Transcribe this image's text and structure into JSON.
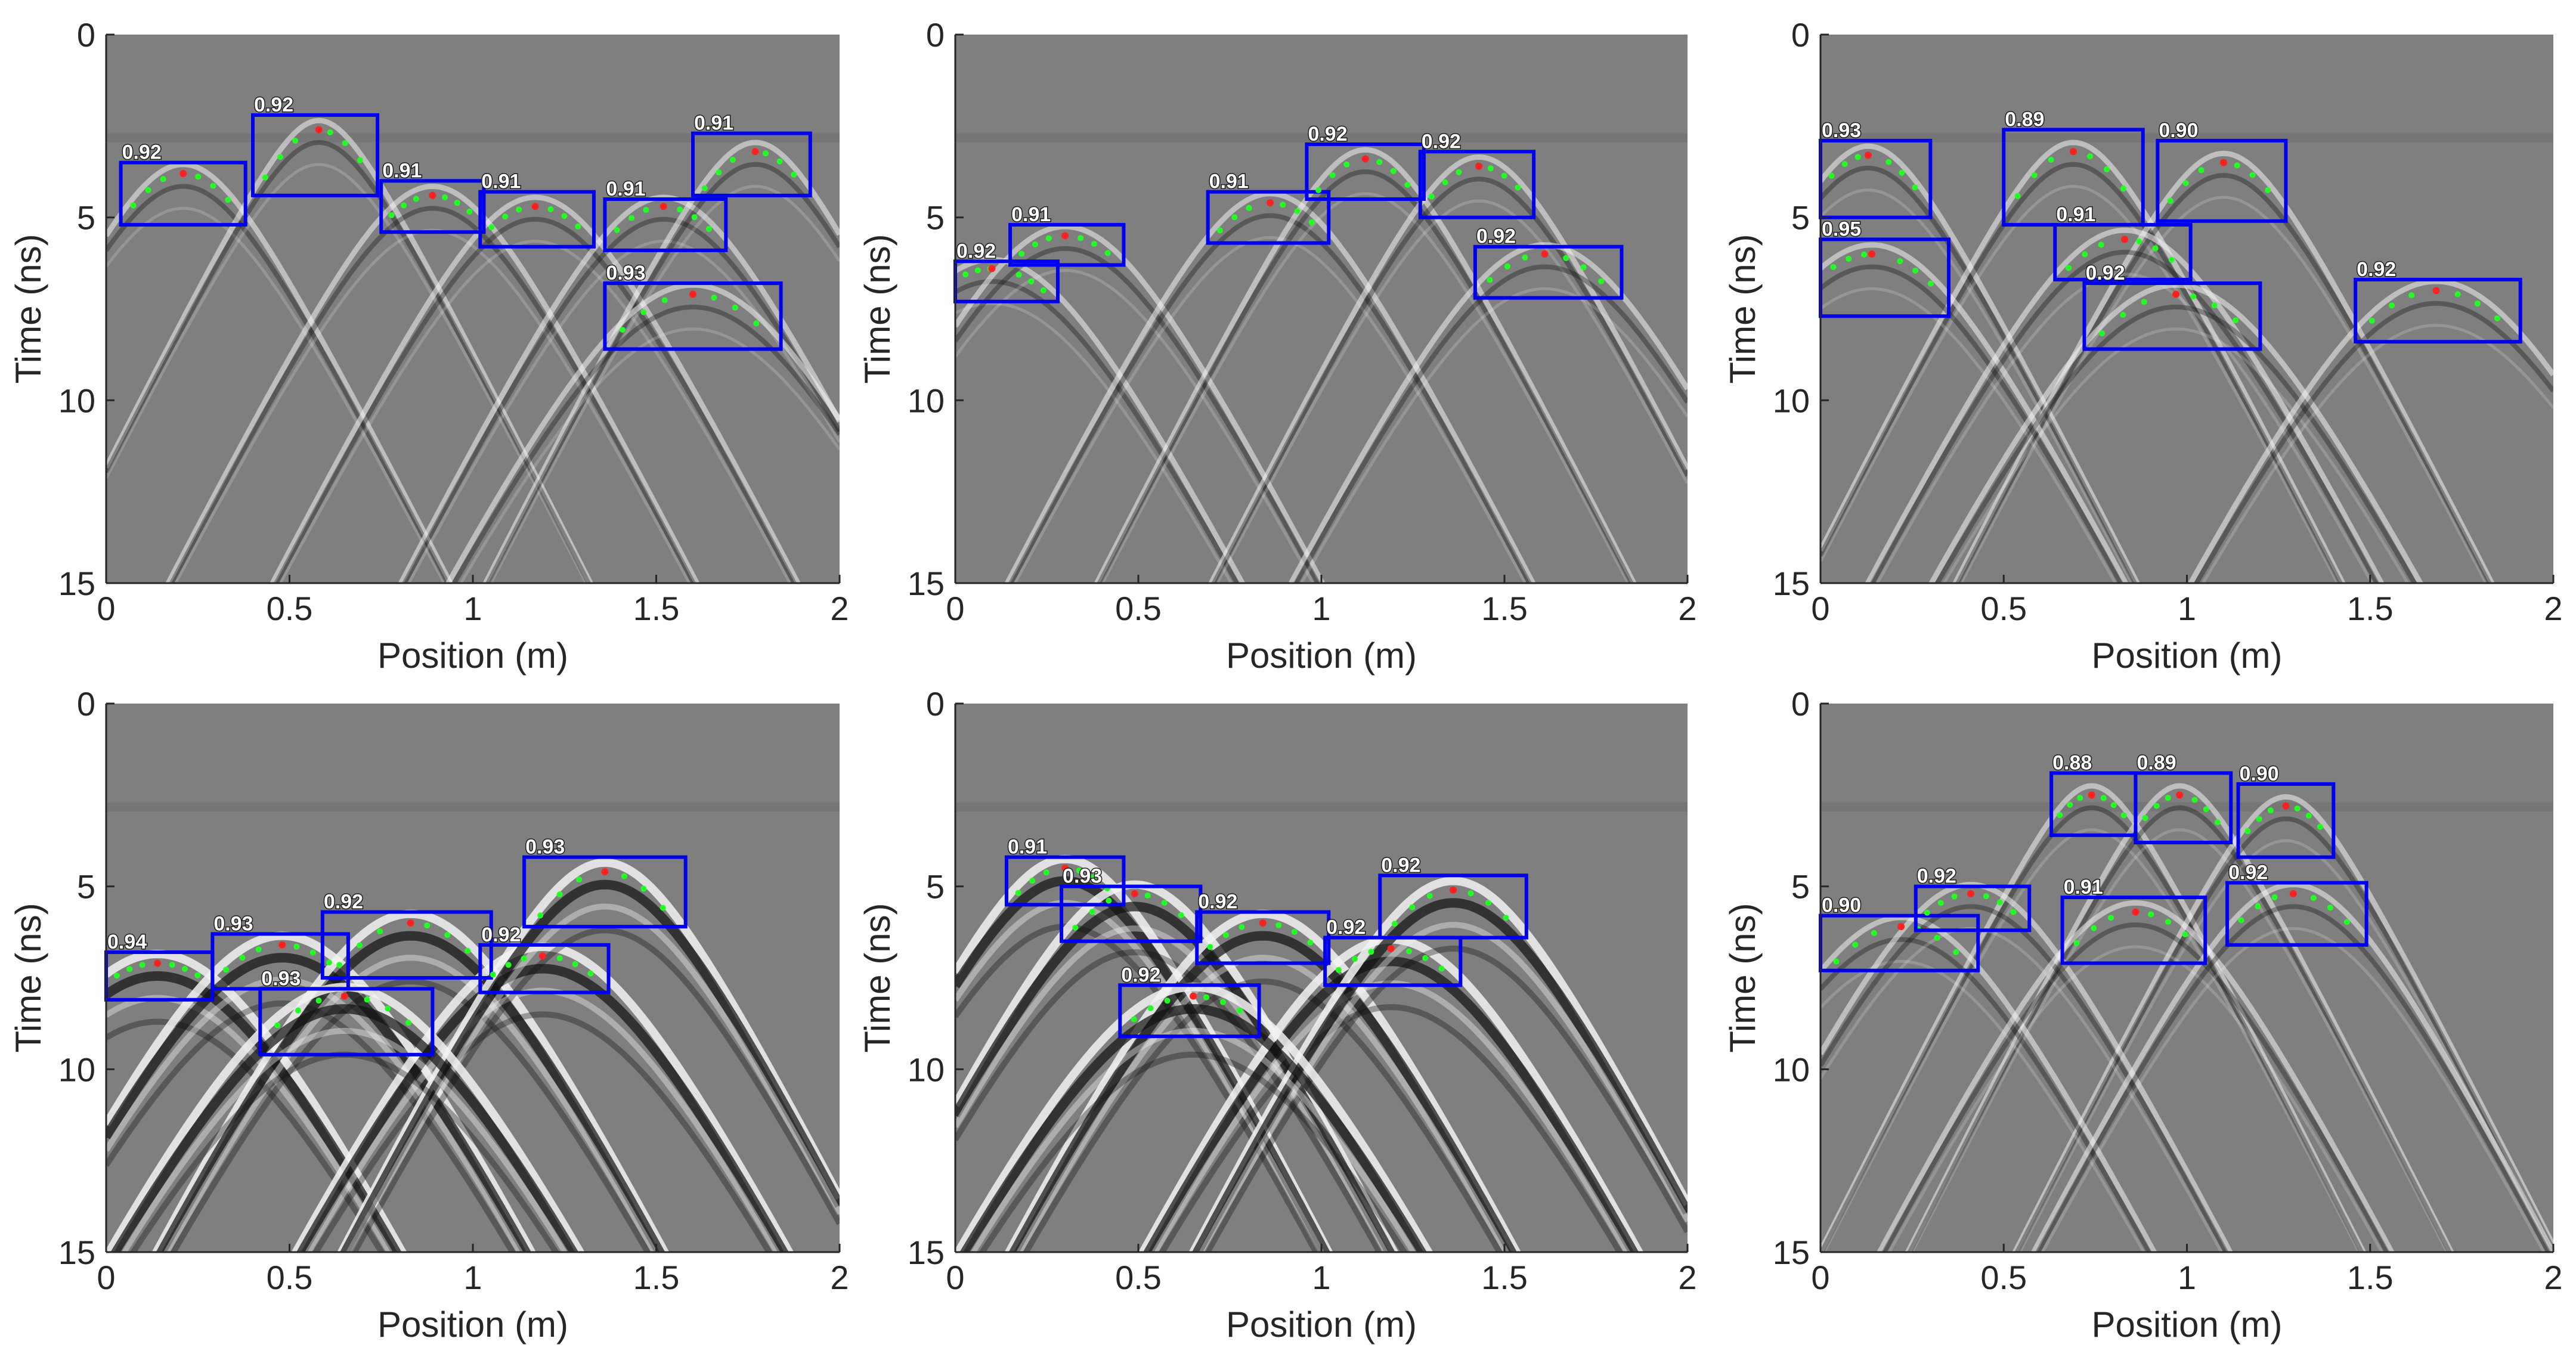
{
  "colors": {
    "background": "#7f7f7f",
    "box": "#0000ee",
    "apex": "#ff2020",
    "points": "#22ff22",
    "hyperbola_light": "#f2f2f2",
    "hyperbola_dark": "#111111",
    "text": "#262626"
  },
  "chart_data": [
    {
      "type": "scatter",
      "xlabel": "Position (m)",
      "ylabel": "Time (ns)",
      "xlim": [
        0,
        2
      ],
      "ylim": [
        0,
        15
      ],
      "y_reversed": true,
      "xticks": [
        {
          "v": 0,
          "label": "0"
        },
        {
          "v": 0.5,
          "label": "0.5"
        },
        {
          "v": 1,
          "label": "1"
        },
        {
          "v": 1.5,
          "label": "1.5"
        },
        {
          "v": 2,
          "label": "2"
        }
      ],
      "yticks": [
        {
          "v": 0,
          "label": "0"
        },
        {
          "v": 5,
          "label": "5"
        },
        {
          "v": 10,
          "label": "10"
        },
        {
          "v": 15,
          "label": "15"
        }
      ],
      "contrast": "low",
      "detections": [
        {
          "score": "0.92",
          "x1": 0.04,
          "x2": 0.38,
          "t1": 3.5,
          "t2": 5.2,
          "apex_x": 0.21,
          "apex_t": 3.8
        },
        {
          "score": "0.92",
          "x1": 0.4,
          "x2": 0.74,
          "t1": 2.2,
          "t2": 4.4,
          "apex_x": 0.58,
          "apex_t": 2.6
        },
        {
          "score": "0.91",
          "x1": 0.75,
          "x2": 1.03,
          "t1": 4.0,
          "t2": 5.4,
          "apex_x": 0.89,
          "apex_t": 4.4
        },
        {
          "score": "0.91",
          "x1": 1.02,
          "x2": 1.33,
          "t1": 4.3,
          "t2": 5.8,
          "apex_x": 1.17,
          "apex_t": 4.7
        },
        {
          "score": "0.91",
          "x1": 1.36,
          "x2": 1.69,
          "t1": 4.5,
          "t2": 5.9,
          "apex_x": 1.52,
          "apex_t": 4.7
        },
        {
          "score": "0.91",
          "x1": 1.6,
          "x2": 1.92,
          "t1": 2.7,
          "t2": 4.4,
          "apex_x": 1.77,
          "apex_t": 3.2
        },
        {
          "score": "0.93",
          "x1": 1.36,
          "x2": 1.84,
          "t1": 6.8,
          "t2": 8.6,
          "apex_x": 1.6,
          "apex_t": 7.1
        }
      ]
    },
    {
      "type": "scatter",
      "xlabel": "Position (m)",
      "ylabel": "Time (ns)",
      "xlim": [
        0,
        2
      ],
      "ylim": [
        0,
        15
      ],
      "y_reversed": true,
      "xticks": [
        {
          "v": 0,
          "label": "0"
        },
        {
          "v": 0.5,
          "label": "0.5"
        },
        {
          "v": 1,
          "label": "1"
        },
        {
          "v": 1.5,
          "label": "1.5"
        },
        {
          "v": 2,
          "label": "2"
        }
      ],
      "yticks": [
        {
          "v": 0,
          "label": "0"
        },
        {
          "v": 5,
          "label": "5"
        },
        {
          "v": 10,
          "label": "10"
        },
        {
          "v": 15,
          "label": "15"
        }
      ],
      "contrast": "low",
      "detections": [
        {
          "score": "0.92",
          "x1": 0.0,
          "x2": 0.28,
          "t1": 6.2,
          "t2": 7.3,
          "apex_x": 0.1,
          "apex_t": 6.4
        },
        {
          "score": "0.91",
          "x1": 0.15,
          "x2": 0.46,
          "t1": 5.2,
          "t2": 6.3,
          "apex_x": 0.3,
          "apex_t": 5.5
        },
        {
          "score": "0.91",
          "x1": 0.69,
          "x2": 1.02,
          "t1": 4.3,
          "t2": 5.7,
          "apex_x": 0.86,
          "apex_t": 4.6
        },
        {
          "score": "0.92",
          "x1": 0.96,
          "x2": 1.28,
          "t1": 3.0,
          "t2": 4.5,
          "apex_x": 1.12,
          "apex_t": 3.4
        },
        {
          "score": "0.92",
          "x1": 1.27,
          "x2": 1.58,
          "t1": 3.2,
          "t2": 5.0,
          "apex_x": 1.43,
          "apex_t": 3.6
        },
        {
          "score": "0.92",
          "x1": 1.42,
          "x2": 1.82,
          "t1": 5.8,
          "t2": 7.2,
          "apex_x": 1.61,
          "apex_t": 6.0
        }
      ]
    },
    {
      "type": "scatter",
      "xlabel": "Position (m)",
      "ylabel": "Time (ns)",
      "xlim": [
        0,
        2
      ],
      "ylim": [
        0,
        15
      ],
      "y_reversed": true,
      "xticks": [
        {
          "v": 0,
          "label": "0"
        },
        {
          "v": 0.5,
          "label": "0.5"
        },
        {
          "v": 1,
          "label": "1"
        },
        {
          "v": 1.5,
          "label": "1.5"
        },
        {
          "v": 2,
          "label": "2"
        }
      ],
      "yticks": [
        {
          "v": 0,
          "label": "0"
        },
        {
          "v": 5,
          "label": "5"
        },
        {
          "v": 10,
          "label": "10"
        },
        {
          "v": 15,
          "label": "15"
        }
      ],
      "contrast": "low",
      "detections": [
        {
          "score": "0.93",
          "x1": 0.0,
          "x2": 0.3,
          "t1": 2.9,
          "t2": 5.0,
          "apex_x": 0.13,
          "apex_t": 3.3
        },
        {
          "score": "0.89",
          "x1": 0.5,
          "x2": 0.88,
          "t1": 2.6,
          "t2": 5.2,
          "apex_x": 0.69,
          "apex_t": 3.2
        },
        {
          "score": "0.90",
          "x1": 0.92,
          "x2": 1.27,
          "t1": 2.9,
          "t2": 5.1,
          "apex_x": 1.1,
          "apex_t": 3.5
        },
        {
          "score": "0.95",
          "x1": 0.0,
          "x2": 0.35,
          "t1": 5.6,
          "t2": 7.7,
          "apex_x": 0.14,
          "apex_t": 6.0
        },
        {
          "score": "0.91",
          "x1": 0.64,
          "x2": 1.01,
          "t1": 5.2,
          "t2": 6.7,
          "apex_x": 0.83,
          "apex_t": 5.6
        },
        {
          "score": "0.92",
          "x1": 0.72,
          "x2": 1.2,
          "t1": 6.8,
          "t2": 8.6,
          "apex_x": 0.97,
          "apex_t": 7.1
        },
        {
          "score": "0.92",
          "x1": 1.46,
          "x2": 1.91,
          "t1": 6.7,
          "t2": 8.4,
          "apex_x": 1.68,
          "apex_t": 7.0
        }
      ]
    },
    {
      "type": "scatter",
      "xlabel": "Position (m)",
      "ylabel": "Time (ns)",
      "xlim": [
        0,
        2
      ],
      "ylim": [
        0,
        15
      ],
      "y_reversed": true,
      "xticks": [
        {
          "v": 0,
          "label": "0"
        },
        {
          "v": 0.5,
          "label": "0.5"
        },
        {
          "v": 1,
          "label": "1"
        },
        {
          "v": 1.5,
          "label": "1.5"
        },
        {
          "v": 2,
          "label": "2"
        }
      ],
      "yticks": [
        {
          "v": 0,
          "label": "0"
        },
        {
          "v": 5,
          "label": "5"
        },
        {
          "v": 10,
          "label": "10"
        },
        {
          "v": 15,
          "label": "15"
        }
      ],
      "contrast": "high",
      "detections": [
        {
          "score": "0.94",
          "x1": 0.0,
          "x2": 0.29,
          "t1": 6.8,
          "t2": 8.1,
          "apex_x": 0.14,
          "apex_t": 7.1
        },
        {
          "score": "0.93",
          "x1": 0.29,
          "x2": 0.66,
          "t1": 6.3,
          "t2": 7.8,
          "apex_x": 0.48,
          "apex_t": 6.6
        },
        {
          "score": "0.92",
          "x1": 0.59,
          "x2": 1.05,
          "t1": 5.7,
          "t2": 7.5,
          "apex_x": 0.83,
          "apex_t": 6.0
        },
        {
          "score": "0.92",
          "x1": 1.02,
          "x2": 1.37,
          "t1": 6.6,
          "t2": 7.9,
          "apex_x": 1.19,
          "apex_t": 6.9
        },
        {
          "score": "0.93",
          "x1": 1.14,
          "x2": 1.58,
          "t1": 4.2,
          "t2": 6.1,
          "apex_x": 1.36,
          "apex_t": 4.6
        },
        {
          "score": "0.93",
          "x1": 0.42,
          "x2": 0.89,
          "t1": 7.8,
          "t2": 9.6,
          "apex_x": 0.65,
          "apex_t": 8.0
        }
      ]
    },
    {
      "type": "scatter",
      "xlabel": "Position (m)",
      "ylabel": "Time (ns)",
      "xlim": [
        0,
        2
      ],
      "ylim": [
        0,
        15
      ],
      "y_reversed": true,
      "xticks": [
        {
          "v": 0,
          "label": "0"
        },
        {
          "v": 0.5,
          "label": "0.5"
        },
        {
          "v": 1,
          "label": "1"
        },
        {
          "v": 1.5,
          "label": "1.5"
        },
        {
          "v": 2,
          "label": "2"
        }
      ],
      "yticks": [
        {
          "v": 0,
          "label": "0"
        },
        {
          "v": 5,
          "label": "5"
        },
        {
          "v": 10,
          "label": "10"
        },
        {
          "v": 15,
          "label": "15"
        }
      ],
      "contrast": "high",
      "detections": [
        {
          "score": "0.91",
          "x1": 0.14,
          "x2": 0.46,
          "t1": 4.2,
          "t2": 5.5,
          "apex_x": 0.3,
          "apex_t": 4.5
        },
        {
          "score": "0.93",
          "x1": 0.29,
          "x2": 0.67,
          "t1": 5.0,
          "t2": 6.5,
          "apex_x": 0.49,
          "apex_t": 5.2
        },
        {
          "score": "0.92",
          "x1": 0.66,
          "x2": 1.02,
          "t1": 5.7,
          "t2": 7.1,
          "apex_x": 0.84,
          "apex_t": 6.0
        },
        {
          "score": "0.92",
          "x1": 1.01,
          "x2": 1.38,
          "t1": 6.4,
          "t2": 7.7,
          "apex_x": 1.19,
          "apex_t": 6.7
        },
        {
          "score": "0.92",
          "x1": 1.16,
          "x2": 1.56,
          "t1": 4.7,
          "t2": 6.4,
          "apex_x": 1.36,
          "apex_t": 5.1
        },
        {
          "score": "0.92",
          "x1": 0.45,
          "x2": 0.83,
          "t1": 7.7,
          "t2": 9.1,
          "apex_x": 0.65,
          "apex_t": 8.0
        }
      ]
    },
    {
      "type": "scatter",
      "xlabel": "Position (m)",
      "ylabel": "Time (ns)",
      "xlim": [
        0,
        2
      ],
      "ylim": [
        0,
        15
      ],
      "y_reversed": true,
      "xticks": [
        {
          "v": 0,
          "label": "0"
        },
        {
          "v": 0.5,
          "label": "0.5"
        },
        {
          "v": 1,
          "label": "1"
        },
        {
          "v": 1.5,
          "label": "1.5"
        },
        {
          "v": 2,
          "label": "2"
        }
      ],
      "yticks": [
        {
          "v": 0,
          "label": "0"
        },
        {
          "v": 5,
          "label": "5"
        },
        {
          "v": 10,
          "label": "10"
        },
        {
          "v": 15,
          "label": "15"
        }
      ],
      "contrast": "low",
      "detections": [
        {
          "score": "0.88",
          "x1": 0.63,
          "x2": 0.86,
          "t1": 1.9,
          "t2": 3.6,
          "apex_x": 0.74,
          "apex_t": 2.5
        },
        {
          "score": "0.89",
          "x1": 0.86,
          "x2": 1.12,
          "t1": 1.9,
          "t2": 3.8,
          "apex_x": 0.98,
          "apex_t": 2.5
        },
        {
          "score": "0.90",
          "x1": 1.14,
          "x2": 1.4,
          "t1": 2.2,
          "t2": 4.2,
          "apex_x": 1.27,
          "apex_t": 2.8
        },
        {
          "score": "0.90",
          "x1": 0.0,
          "x2": 0.43,
          "t1": 5.8,
          "t2": 7.3,
          "apex_x": 0.22,
          "apex_t": 6.1
        },
        {
          "score": "0.92",
          "x1": 0.26,
          "x2": 0.57,
          "t1": 5.0,
          "t2": 6.2,
          "apex_x": 0.41,
          "apex_t": 5.2
        },
        {
          "score": "0.91",
          "x1": 0.66,
          "x2": 1.05,
          "t1": 5.3,
          "t2": 7.1,
          "apex_x": 0.86,
          "apex_t": 5.7
        },
        {
          "score": "0.92",
          "x1": 1.11,
          "x2": 1.49,
          "t1": 4.9,
          "t2": 6.6,
          "apex_x": 1.29,
          "apex_t": 5.2
        }
      ]
    }
  ]
}
